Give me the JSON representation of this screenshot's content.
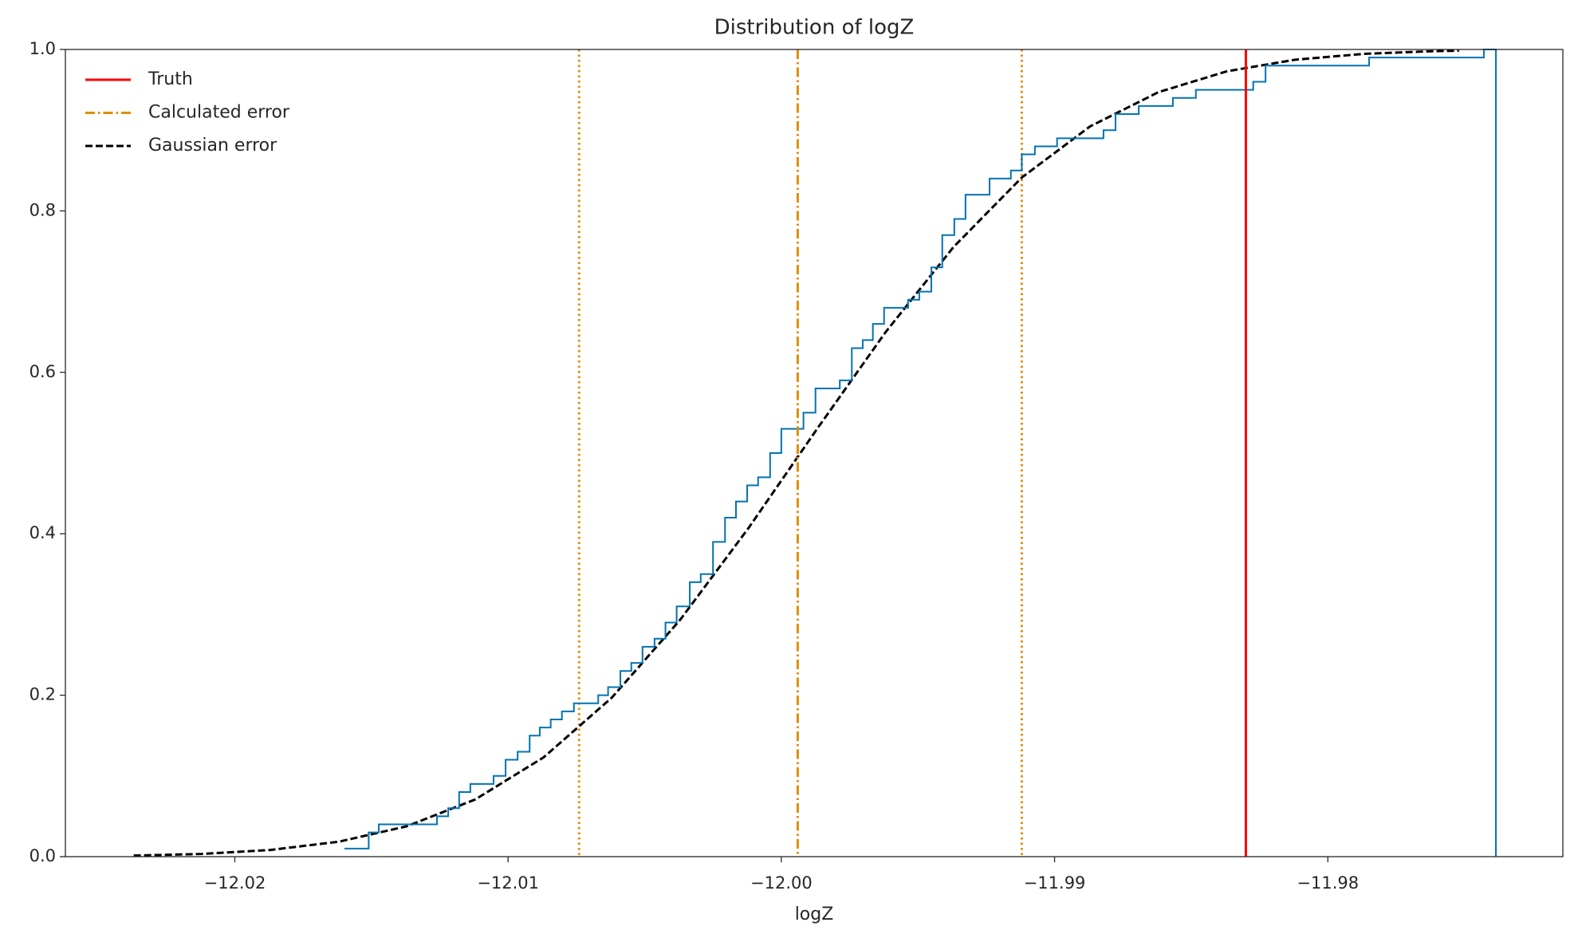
{
  "chart_data": {
    "type": "line",
    "title": "Distribution of logZ",
    "xlabel": "logZ",
    "xlim": [
      -12.0262,
      -11.9714
    ],
    "ylim": [
      0,
      1
    ],
    "xticks": [
      {
        "value": -12.02,
        "label": "−12.02"
      },
      {
        "value": -12.01,
        "label": "−12.01"
      },
      {
        "value": -12.0,
        "label": "−12.00"
      },
      {
        "value": -11.99,
        "label": "−11.99"
      },
      {
        "value": -11.98,
        "label": "−11.98"
      }
    ],
    "yticks": [
      {
        "value": 0,
        "label": "0.0"
      },
      {
        "value": 0.2,
        "label": "0.2"
      },
      {
        "value": 0.4,
        "label": "0.4"
      },
      {
        "value": 0.6,
        "label": "0.6"
      },
      {
        "value": 0.8,
        "label": "0.8"
      },
      {
        "value": 1,
        "label": "1.0"
      }
    ],
    "grid": false,
    "legend": "upper left",
    "vlines": [
      {
        "name": "Truth",
        "color": "#ff0000",
        "style": "solid",
        "x": -11.983
      },
      {
        "name": "Calculated error",
        "color": "#de8f05",
        "style": "dashdot",
        "x": -11.9994,
        "interval": [
          -12.0074,
          -11.9912
        ],
        "interval_style": "dotted"
      }
    ],
    "series": [
      {
        "name": "Gaussian error",
        "color": "#000000",
        "style": "dashed",
        "x": [
          -12.0237,
          -12.0212,
          -12.0187,
          -12.0162,
          -12.0137,
          -12.0112,
          -12.0087,
          -12.0062,
          -12.0037,
          -12.0012,
          -11.9987,
          -11.9962,
          -11.9937,
          -11.9912,
          -11.9887,
          -11.9862,
          -11.9837,
          -11.9812,
          -11.9787,
          -11.9762,
          -11.9752
        ],
        "values": [
          0.0013,
          0.0034,
          0.0083,
          0.0185,
          0.0377,
          0.0709,
          0.123,
          0.1971,
          0.2935,
          0.4071,
          0.5295,
          0.6491,
          0.7552,
          0.8413,
          0.9047,
          0.9471,
          0.9729,
          0.9873,
          0.9945,
          0.9978,
          0.9985
        ]
      },
      {
        "color": "#0173b2",
        "style": "step",
        "x": [
          -12.01599,
          -12.0151,
          -12.01473,
          -12.0126,
          -12.01219,
          -12.01179,
          -12.01138,
          -12.01053,
          -12.01009,
          -12.00965,
          -12.00921,
          -12.00884,
          -12.00844,
          -12.00803,
          -12.00759,
          -12.0067,
          -12.00634,
          -12.00589,
          -12.00549,
          -12.00508,
          -12.00464,
          -12.00424,
          -12.00383,
          -12.00335,
          -12.00295,
          -12.0025,
          -12.00206,
          -12.00166,
          -12.00125,
          -12.00085,
          -12.00041,
          -12.0,
          -11.99919,
          -11.99875,
          -11.99786,
          -11.99742,
          -11.99702,
          -11.99665,
          -11.99624,
          -11.99536,
          -11.99495,
          -11.99451,
          -11.99411,
          -11.99367,
          -11.99326,
          -11.99238,
          -11.9916,
          -11.9912,
          -11.99072,
          -11.98991,
          -11.98821,
          -11.98777,
          -11.98692,
          -11.98567,
          -11.98483,
          -11.98273,
          -11.98228,
          -11.97849,
          -11.97429,
          -11.97385
        ],
        "values": [
          0.01,
          0.03,
          0.04,
          0.05,
          0.06,
          0.08,
          0.09,
          0.1,
          0.12,
          0.13,
          0.15,
          0.16,
          0.17,
          0.18,
          0.19,
          0.2,
          0.21,
          0.23,
          0.24,
          0.26,
          0.27,
          0.29,
          0.31,
          0.34,
          0.35,
          0.39,
          0.42,
          0.44,
          0.46,
          0.47,
          0.5,
          0.53,
          0.55,
          0.58,
          0.59,
          0.63,
          0.64,
          0.66,
          0.68,
          0.69,
          0.7,
          0.73,
          0.77,
          0.79,
          0.82,
          0.84,
          0.85,
          0.87,
          0.88,
          0.89,
          0.9,
          0.92,
          0.93,
          0.94,
          0.95,
          0.96,
          0.98,
          0.99,
          1.0,
          0
        ]
      }
    ]
  }
}
